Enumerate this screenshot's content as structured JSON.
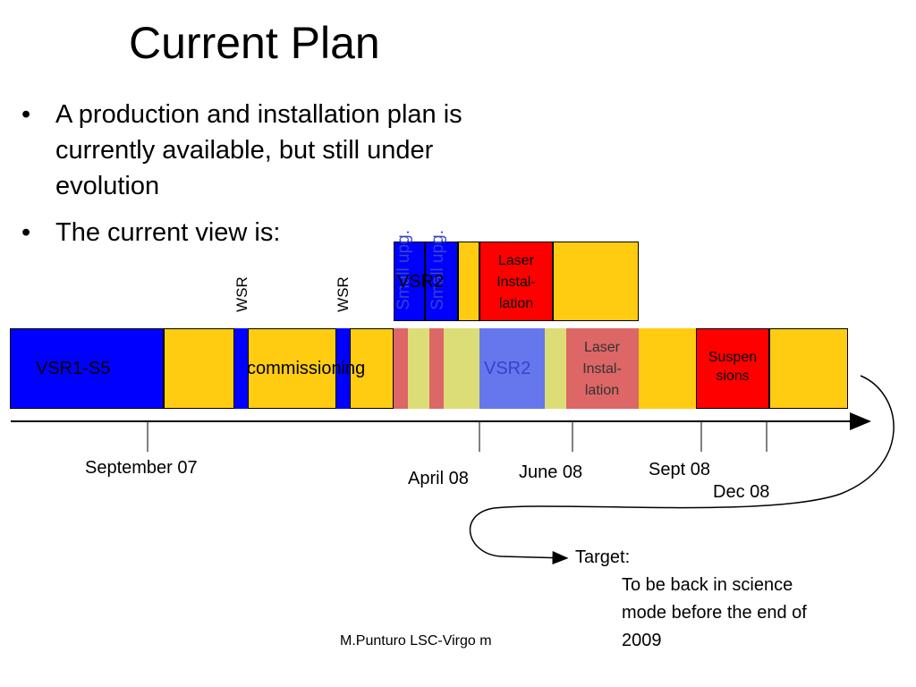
{
  "title": "Current Plan",
  "bullets": [
    "A production and installation plan is currently available, but still under evolution",
    "The current view is:"
  ],
  "bullet_symbol": "•",
  "timeline": {
    "lower_row": {
      "vsr1": "VSR1-S5",
      "commissioning": "commissioning",
      "vsr2_faded": "VSR2",
      "laser_faded": "Laser Instal- lation",
      "suspensions": "Suspen sions"
    },
    "upper_row": {
      "small_upg_1": "Small upg.",
      "small_upg_2": "Small upg.",
      "vsr2": "VSR2",
      "laser": "Laser Instal- lation"
    },
    "wsr_1": "WSR",
    "wsr_2": "WSR",
    "dates": {
      "sep07": "September 07",
      "apr08": "April 08",
      "jun08": "June 08",
      "sep08": "Sept 08",
      "dec08": "Dec 08"
    }
  },
  "target": {
    "heading": "Target:",
    "lines": [
      "To be back in science",
      "mode before the end of",
      "2009"
    ]
  },
  "footer": "M.Punturo LSC-Virgo m",
  "colors": {
    "blue": "#0000ff",
    "yellow": "#ffcc11",
    "red": "#ff0000",
    "faded_blue": "#6677ee",
    "faded_red": "#dd6666",
    "faded_yellow": "#dddd77"
  }
}
